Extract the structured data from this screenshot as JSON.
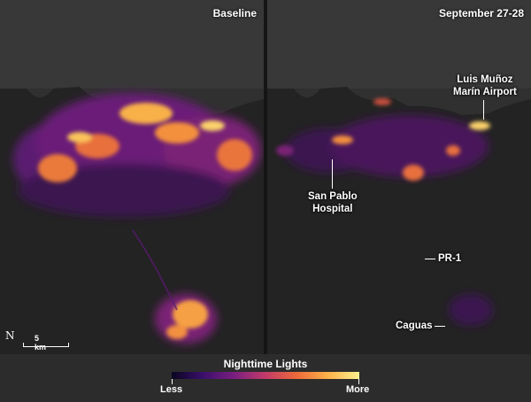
{
  "panels": {
    "left": {
      "title": "Baseline"
    },
    "right": {
      "title": "September 27-28"
    }
  },
  "labels": {
    "airport": "Luis Muñoz\nMarín Airport",
    "hospital": "San Pablo\nHospital",
    "road": "PR-1",
    "town": "Caguas"
  },
  "scale": {
    "north_symbol": "N",
    "distance": "5 km"
  },
  "legend": {
    "title": "Nighttime Lights",
    "low": "Less",
    "high": "More",
    "colors": [
      "#0a0520",
      "#3a0f6b",
      "#7a1f80",
      "#c33a6a",
      "#ee6a3a",
      "#fbb24a",
      "#fdf08c"
    ]
  },
  "colors": {
    "sea": "#3a3a3a",
    "land": "#262626"
  }
}
